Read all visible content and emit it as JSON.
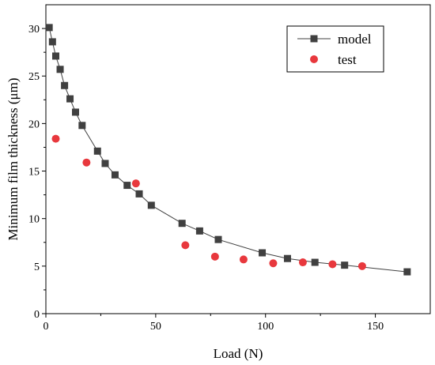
{
  "chart_data": {
    "type": "scatter",
    "xlabel": "Load (N)",
    "ylabel": "Minimum film thickness (μm)",
    "xlim": [
      0,
      175
    ],
    "ylim": [
      0,
      32.5
    ],
    "xticks": [
      0,
      50,
      100,
      150
    ],
    "yticks": [
      0,
      5,
      10,
      15,
      20,
      25,
      30
    ],
    "grid": false,
    "legend_position": "top-right",
    "series": [
      {
        "name": "model",
        "style": "line-square",
        "color": "#404040",
        "x": [
          1.5,
          3.0,
          4.5,
          6.5,
          8.5,
          11.0,
          13.5,
          16.5,
          23.5,
          27.0,
          31.5,
          37.0,
          42.5,
          48.0,
          62.0,
          70.0,
          78.5,
          98.5,
          110.0,
          122.5,
          136.0,
          164.5
        ],
        "y": [
          30.1,
          28.6,
          27.1,
          25.7,
          24.0,
          22.6,
          21.2,
          19.8,
          17.1,
          15.8,
          14.6,
          13.5,
          12.6,
          11.4,
          9.5,
          8.7,
          7.8,
          6.4,
          5.8,
          5.4,
          5.1,
          4.4
        ]
      },
      {
        "name": "test",
        "style": "circle",
        "color": "#e8383d",
        "x": [
          4.5,
          18.5,
          41.0,
          63.5,
          77.0,
          90.0,
          103.5,
          117.0,
          130.5,
          144.0
        ],
        "y": [
          18.4,
          15.9,
          13.7,
          7.2,
          6.0,
          5.7,
          5.3,
          5.4,
          5.2,
          5.0
        ]
      }
    ]
  }
}
